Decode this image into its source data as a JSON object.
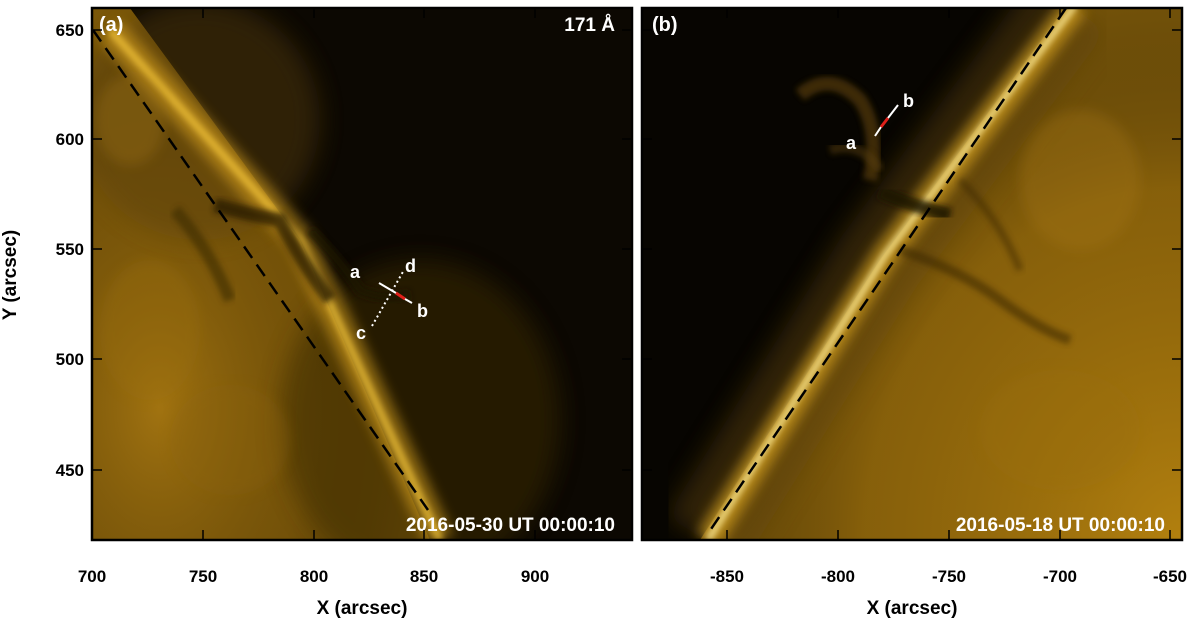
{
  "panel_a": {
    "label": "(a)",
    "wavelength": "171 Å",
    "timestamp": "2016-05-30 UT 00:00:10",
    "markers": {
      "a": "a",
      "b": "b",
      "c": "c",
      "d": "d"
    },
    "x_ticks": [
      "700",
      "750",
      "800",
      "850",
      "900"
    ],
    "y_ticks": [
      "650",
      "600",
      "550",
      "500",
      "450"
    ]
  },
  "panel_b": {
    "label": "(b)",
    "timestamp": "2016-05-18 UT 00:00:10",
    "markers": {
      "a": "a",
      "b": "b"
    },
    "x_ticks": [
      "-850",
      "-800",
      "-750",
      "-700",
      "-650"
    ]
  },
  "axes": {
    "x_title": "X (arcsec)",
    "y_title": "Y (arcsec)"
  },
  "colors": {
    "solar_disk": "#c08a10",
    "limb_bright": "#ffd84a",
    "corona_dark": "#0e0a02",
    "cut_highlight": "#e0201a"
  }
}
